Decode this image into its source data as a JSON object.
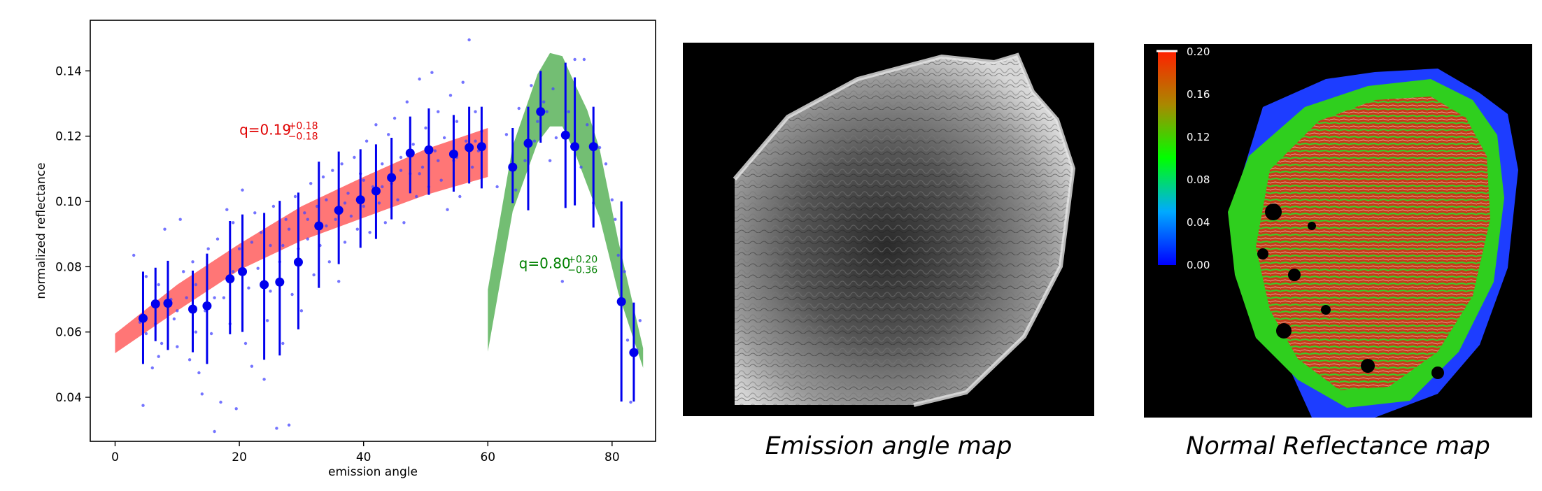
{
  "chart_data": {
    "type": "scatter",
    "xlabel": "emission angle",
    "ylabel": "normalized reflectance",
    "xlim": [
      -4,
      87
    ],
    "ylim": [
      0.0265,
      0.1555
    ],
    "xticks": [
      0,
      20,
      40,
      60,
      80
    ],
    "yticks": [
      0.04,
      0.06,
      0.08,
      0.1,
      0.12,
      0.14
    ],
    "grid": false,
    "bands": [
      {
        "color": "#ff6f6f",
        "x": [
          0,
          10,
          20,
          30,
          40,
          50,
          60
        ],
        "upper": [
          0.0595,
          0.0745,
          0.087,
          0.0985,
          0.1075,
          0.116,
          0.1225
        ],
        "lower": [
          0.0535,
          0.0665,
          0.079,
          0.088,
          0.095,
          0.102,
          0.1075
        ],
        "annotation": {
          "base": "q=0.19",
          "sup": "+0.18",
          "sub": "−0.18",
          "color": "#e00000",
          "x": 20,
          "y": 0.1205
        }
      },
      {
        "color": "#6cbb6c",
        "x": [
          60,
          64,
          68,
          70,
          72,
          74,
          76,
          78,
          81,
          85
        ],
        "upper": [
          0.073,
          0.117,
          0.139,
          0.1455,
          0.1445,
          0.136,
          0.128,
          0.116,
          0.088,
          0.055
        ],
        "lower": [
          0.054,
          0.097,
          0.118,
          0.123,
          0.123,
          0.115,
          0.105,
          0.095,
          0.072,
          0.049
        ],
        "annotation": {
          "base": "q=0.80",
          "sup": "+0.20",
          "sub": "−0.36",
          "color": "#008000",
          "x": 65,
          "y": 0.0795
        }
      }
    ],
    "binned_points": {
      "color": "#0000ee",
      "points": [
        {
          "x": 4.5,
          "y": 0.0642,
          "lo": 0.0502,
          "hi": 0.0785
        },
        {
          "x": 6.5,
          "y": 0.0686,
          "lo": 0.0572,
          "hi": 0.0797
        },
        {
          "x": 8.5,
          "y": 0.0688,
          "lo": 0.0545,
          "hi": 0.0818
        },
        {
          "x": 12.5,
          "y": 0.067,
          "lo": 0.0538,
          "hi": 0.0788
        },
        {
          "x": 14.8,
          "y": 0.068,
          "lo": 0.0502,
          "hi": 0.084
        },
        {
          "x": 18.5,
          "y": 0.0763,
          "lo": 0.0593,
          "hi": 0.094
        },
        {
          "x": 20.5,
          "y": 0.0785,
          "lo": 0.06,
          "hi": 0.096
        },
        {
          "x": 24.0,
          "y": 0.0745,
          "lo": 0.0515,
          "hi": 0.0965
        },
        {
          "x": 26.5,
          "y": 0.0753,
          "lo": 0.0528,
          "hi": 0.1002
        },
        {
          "x": 29.5,
          "y": 0.0814,
          "lo": 0.0608,
          "hi": 0.1027
        },
        {
          "x": 32.8,
          "y": 0.0925,
          "lo": 0.0735,
          "hi": 0.1122
        },
        {
          "x": 36.0,
          "y": 0.0973,
          "lo": 0.0808,
          "hi": 0.1153
        },
        {
          "x": 39.5,
          "y": 0.1005,
          "lo": 0.0858,
          "hi": 0.116
        },
        {
          "x": 42.0,
          "y": 0.1032,
          "lo": 0.0885,
          "hi": 0.1175
        },
        {
          "x": 44.5,
          "y": 0.1073,
          "lo": 0.0945,
          "hi": 0.1195
        },
        {
          "x": 47.5,
          "y": 0.1148,
          "lo": 0.1025,
          "hi": 0.126
        },
        {
          "x": 50.5,
          "y": 0.1158,
          "lo": 0.102,
          "hi": 0.1285
        },
        {
          "x": 54.5,
          "y": 0.1145,
          "lo": 0.103,
          "hi": 0.1265
        },
        {
          "x": 57.0,
          "y": 0.1165,
          "lo": 0.1055,
          "hi": 0.129
        },
        {
          "x": 59.0,
          "y": 0.1168,
          "lo": 0.104,
          "hi": 0.129
        },
        {
          "x": 64.0,
          "y": 0.1105,
          "lo": 0.0995,
          "hi": 0.1225
        },
        {
          "x": 66.5,
          "y": 0.1178,
          "lo": 0.0973,
          "hi": 0.129
        },
        {
          "x": 68.5,
          "y": 0.1275,
          "lo": 0.118,
          "hi": 0.14
        },
        {
          "x": 72.5,
          "y": 0.1203,
          "lo": 0.098,
          "hi": 0.1425
        },
        {
          "x": 74.0,
          "y": 0.1168,
          "lo": 0.0988,
          "hi": 0.138
        },
        {
          "x": 77.0,
          "y": 0.1168,
          "lo": 0.092,
          "hi": 0.129
        },
        {
          "x": 81.5,
          "y": 0.0693,
          "lo": 0.0387,
          "hi": 0.1
        },
        {
          "x": 83.5,
          "y": 0.0537,
          "lo": 0.0387,
          "hi": 0.069
        }
      ]
    },
    "raw_points": {
      "color": "#4646ff",
      "points": [
        [
          3,
          0.0835
        ],
        [
          4,
          0.063
        ],
        [
          4.5,
          0.0375
        ],
        [
          5,
          0.077
        ],
        [
          6,
          0.049
        ],
        [
          6.5,
          0.0625
        ],
        [
          7,
          0.0745
        ],
        [
          7.5,
          0.0565
        ],
        [
          8,
          0.0915
        ],
        [
          9,
          0.07
        ],
        [
          9.5,
          0.064
        ],
        [
          10,
          0.0555
        ],
        [
          10.5,
          0.0945
        ],
        [
          11,
          0.0785
        ],
        [
          11.5,
          0.0705
        ],
        [
          12,
          0.0515
        ],
        [
          12.5,
          0.0815
        ],
        [
          13,
          0.06
        ],
        [
          13.5,
          0.0475
        ],
        [
          14,
          0.041
        ],
        [
          14.5,
          0.0665
        ],
        [
          15,
          0.0855
        ],
        [
          15.5,
          0.0595
        ],
        [
          16,
          0.0295
        ],
        [
          16.5,
          0.0885
        ],
        [
          17,
          0.0385
        ],
        [
          17.5,
          0.0705
        ],
        [
          18,
          0.0975
        ],
        [
          18.5,
          0.0625
        ],
        [
          19,
          0.0935
        ],
        [
          19.5,
          0.0365
        ],
        [
          20,
          0.0855
        ],
        [
          20.5,
          0.1035
        ],
        [
          21,
          0.0565
        ],
        [
          21.5,
          0.0735
        ],
        [
          22,
          0.0495
        ],
        [
          22.5,
          0.0965
        ],
        [
          23,
          0.0795
        ],
        [
          23.5,
          0.0905
        ],
        [
          24,
          0.0455
        ],
        [
          24.5,
          0.0635
        ],
        [
          25,
          0.0865
        ],
        [
          25.5,
          0.0985
        ],
        [
          26,
          0.0305
        ],
        [
          26.5,
          0.0815
        ],
        [
          27,
          0.0565
        ],
        [
          27.5,
          0.0945
        ],
        [
          28,
          0.0315
        ],
        [
          28.5,
          0.0715
        ],
        [
          29,
          0.1015
        ],
        [
          29.5,
          0.0855
        ],
        [
          30,
          0.0665
        ],
        [
          30.5,
          0.0965
        ],
        [
          31,
          0.0885
        ],
        [
          31.5,
          0.1055
        ],
        [
          32,
          0.0775
        ],
        [
          32.5,
          0.0985
        ],
        [
          33,
          0.0865
        ],
        [
          33.5,
          0.1075
        ],
        [
          34,
          0.0925
        ],
        [
          34.5,
          0.0815
        ],
        [
          35,
          0.1095
        ],
        [
          35.5,
          0.0945
        ],
        [
          36,
          0.0755
        ],
        [
          36.5,
          0.1115
        ],
        [
          37,
          0.0875
        ],
        [
          37.5,
          0.1025
        ],
        [
          38,
          0.0955
        ],
        [
          38.5,
          0.1135
        ],
        [
          39,
          0.0915
        ],
        [
          39.5,
          0.1085
        ],
        [
          40,
          0.0985
        ],
        [
          40.5,
          0.1185
        ],
        [
          41,
          0.0905
        ],
        [
          41.5,
          0.1045
        ],
        [
          42,
          0.1235
        ],
        [
          42.5,
          0.0995
        ],
        [
          43,
          0.1115
        ],
        [
          43.5,
          0.0935
        ],
        [
          44,
          0.1205
        ],
        [
          44.5,
          0.1055
        ],
        [
          45,
          0.1255
        ],
        [
          45.5,
          0.1005
        ],
        [
          46,
          0.1135
        ],
        [
          46.5,
          0.0935
        ],
        [
          47,
          0.1305
        ],
        [
          47.5,
          0.1085
        ],
        [
          48,
          0.1175
        ],
        [
          48.5,
          0.1015
        ],
        [
          49,
          0.1375
        ],
        [
          49.5,
          0.1105
        ],
        [
          50,
          0.1225
        ],
        [
          50.5,
          0.1045
        ],
        [
          51,
          0.1395
        ],
        [
          51.5,
          0.1155
        ],
        [
          52,
          0.1275
        ],
        [
          52.5,
          0.1065
        ],
        [
          53,
          0.1195
        ],
        [
          53.5,
          0.0975
        ],
        [
          54,
          0.1325
        ],
        [
          54.5,
          0.1125
        ],
        [
          55,
          0.1245
        ],
        [
          55.5,
          0.1015
        ],
        [
          56,
          0.1365
        ],
        [
          56.5,
          0.1185
        ],
        [
          57,
          0.1495
        ],
        [
          57.5,
          0.1105
        ],
        [
          58,
          0.1275
        ],
        [
          58.5,
          0.1155
        ],
        [
          59,
          0.1215
        ],
        [
          5,
          0.0595
        ],
        [
          7,
          0.0525
        ],
        [
          10,
          0.0665
        ],
        [
          13,
          0.0745
        ],
        [
          16,
          0.0705
        ],
        [
          19,
          0.0785
        ],
        [
          22,
          0.0875
        ],
        [
          25,
          0.0725
        ],
        [
          28,
          0.0915
        ],
        [
          31,
          0.0945
        ],
        [
          34,
          0.1005
        ],
        [
          37,
          0.0995
        ],
        [
          40,
          0.1065
        ],
        [
          43,
          0.1045
        ],
        [
          46,
          0.1095
        ],
        [
          49,
          0.1085
        ],
        [
          52,
          0.1125
        ],
        [
          55,
          0.1135
        ],
        [
          58,
          0.1185
        ],
        [
          27,
          0.0865
        ],
        [
          61.5,
          0.1045
        ],
        [
          63,
          0.1205
        ],
        [
          64.5,
          0.1035
        ],
        [
          65,
          0.1285
        ],
        [
          66,
          0.1125
        ],
        [
          67,
          0.1355
        ],
        [
          67.5,
          0.1185
        ],
        [
          68,
          0.1245
        ],
        [
          69,
          0.1305
        ],
        [
          70,
          0.1125
        ],
        [
          70.5,
          0.1345
        ],
        [
          71,
          0.1195
        ],
        [
          72,
          0.0755
        ],
        [
          73,
          0.1275
        ],
        [
          74,
          0.1435
        ],
        [
          75,
          0.1105
        ],
        [
          76,
          0.1235
        ],
        [
          77,
          0.0995
        ],
        [
          78,
          0.1165
        ],
        [
          79,
          0.1115
        ],
        [
          80,
          0.1005
        ],
        [
          80.5,
          0.0945
        ],
        [
          81,
          0.0835
        ],
        [
          82,
          0.0785
        ],
        [
          82.5,
          0.0575
        ],
        [
          83,
          0.0385
        ],
        [
          84,
          0.0545
        ],
        [
          84.5,
          0.0635
        ],
        [
          69.5,
          0.1275
        ],
        [
          75.5,
          0.1435
        ]
      ]
    }
  },
  "panels": {
    "emission": {
      "caption": "Emission angle map"
    },
    "reflectance": {
      "caption": "Normal Reflectance map",
      "colorbar": {
        "labels": [
          "0.20",
          "0.16",
          "0.12",
          "0.08",
          "0.04",
          "0.00"
        ]
      }
    }
  }
}
